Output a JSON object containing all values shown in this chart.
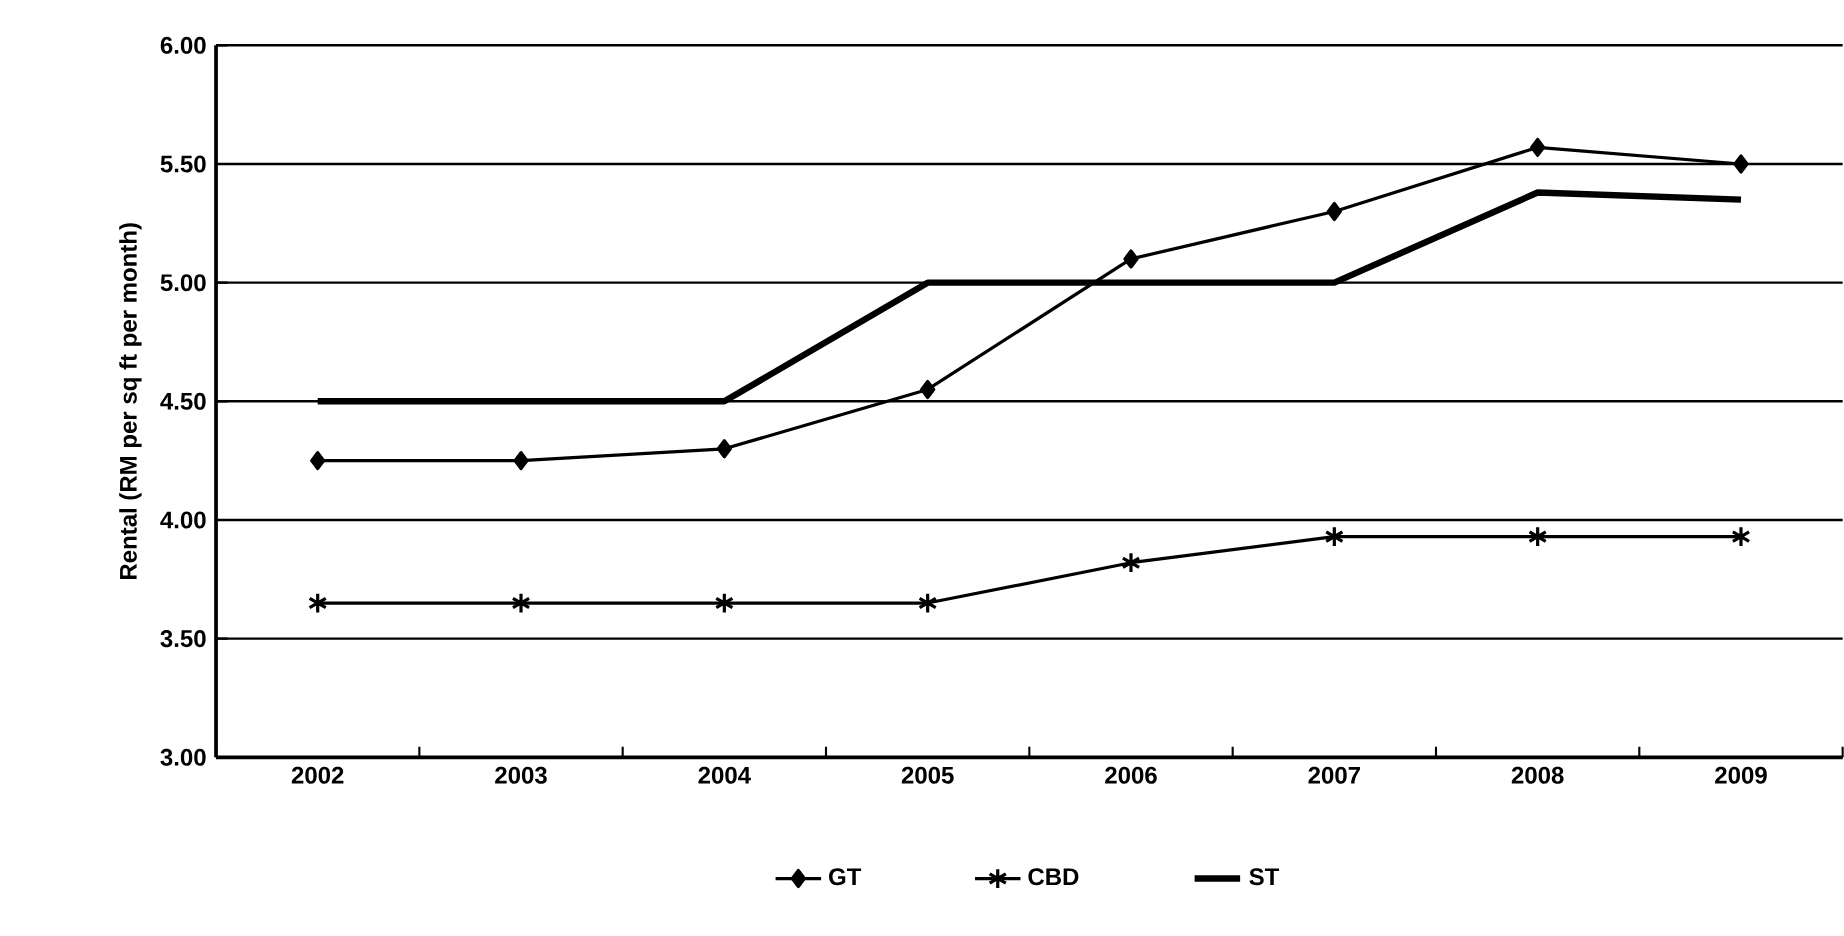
{
  "chart_data": {
    "type": "line",
    "ylabel": "Rental (RM per sq ft per month)",
    "categories": [
      "2002",
      "2003",
      "2004",
      "2005",
      "2006",
      "2007",
      "2008",
      "2009"
    ],
    "series": [
      {
        "name": "GT",
        "color": "#000000",
        "marker": "diamond",
        "values": [
          4.25,
          4.25,
          4.3,
          4.55,
          5.1,
          5.3,
          5.57,
          5.5
        ]
      },
      {
        "name": "CBD",
        "color": "#000000",
        "marker": "cross",
        "values": [
          3.65,
          3.65,
          3.65,
          3.65,
          3.82,
          3.93,
          3.93,
          3.93
        ]
      },
      {
        "name": "ST",
        "color": "#000000",
        "marker": "none",
        "values": [
          4.5,
          4.5,
          4.5,
          5.0,
          5.0,
          5.0,
          5.38,
          5.35
        ]
      }
    ],
    "ylim": [
      3.0,
      6.0
    ],
    "yticks": [
      {
        "value": 3.0,
        "label": "3.00"
      },
      {
        "value": 3.5,
        "label": "3.50"
      },
      {
        "value": 4.0,
        "label": "4.00"
      },
      {
        "value": 4.5,
        "label": "4.50"
      },
      {
        "value": 5.0,
        "label": "5.00"
      },
      {
        "value": 5.5,
        "label": "5.50"
      },
      {
        "value": 6.0,
        "label": "6.00"
      }
    ],
    "grid": "y",
    "legend": "bottom",
    "line_style": "solid"
  }
}
